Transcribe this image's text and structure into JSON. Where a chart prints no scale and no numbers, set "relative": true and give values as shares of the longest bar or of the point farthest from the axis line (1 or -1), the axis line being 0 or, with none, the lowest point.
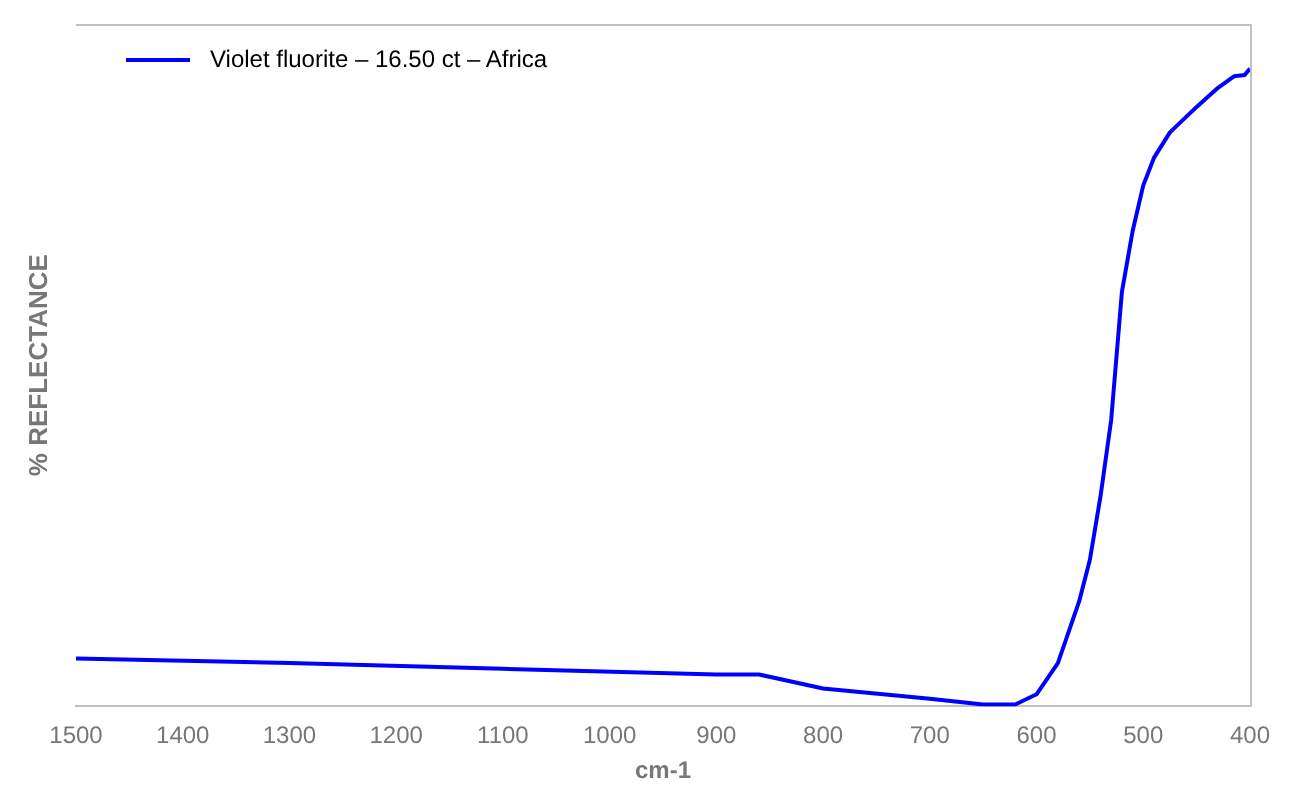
{
  "chart_data": {
    "type": "line",
    "xlabel": "cm-1",
    "ylabel": "% REFLECTANCE",
    "relative": true,
    "tick_labels": "x",
    "legend": "top left",
    "grid": false,
    "marker": "none",
    "line_style": "solid",
    "xlim": [
      1500,
      400
    ],
    "xticks": [
      1500,
      1400,
      1300,
      1200,
      1100,
      1000,
      900,
      800,
      700,
      600,
      500,
      400
    ],
    "x": [
      1500,
      1300,
      1100,
      900,
      860,
      800,
      700,
      650,
      620,
      600,
      580,
      560,
      550,
      540,
      530,
      520,
      510,
      500,
      490,
      475,
      450,
      430,
      415,
      405,
      400
    ],
    "series": [
      {
        "name": "Violet fluorite – 16.50 ct – Africa",
        "color": "#0000ff",
        "values": [
          0.075,
          0.068,
          0.059,
          0.05,
          0.05,
          0.028,
          0.012,
          0.003,
          0.003,
          0.019,
          0.068,
          0.165,
          0.23,
          0.33,
          0.45,
          0.65,
          0.745,
          0.817,
          0.86,
          0.9,
          0.94,
          0.97,
          0.988,
          0.99,
          1.0
        ]
      }
    ]
  }
}
